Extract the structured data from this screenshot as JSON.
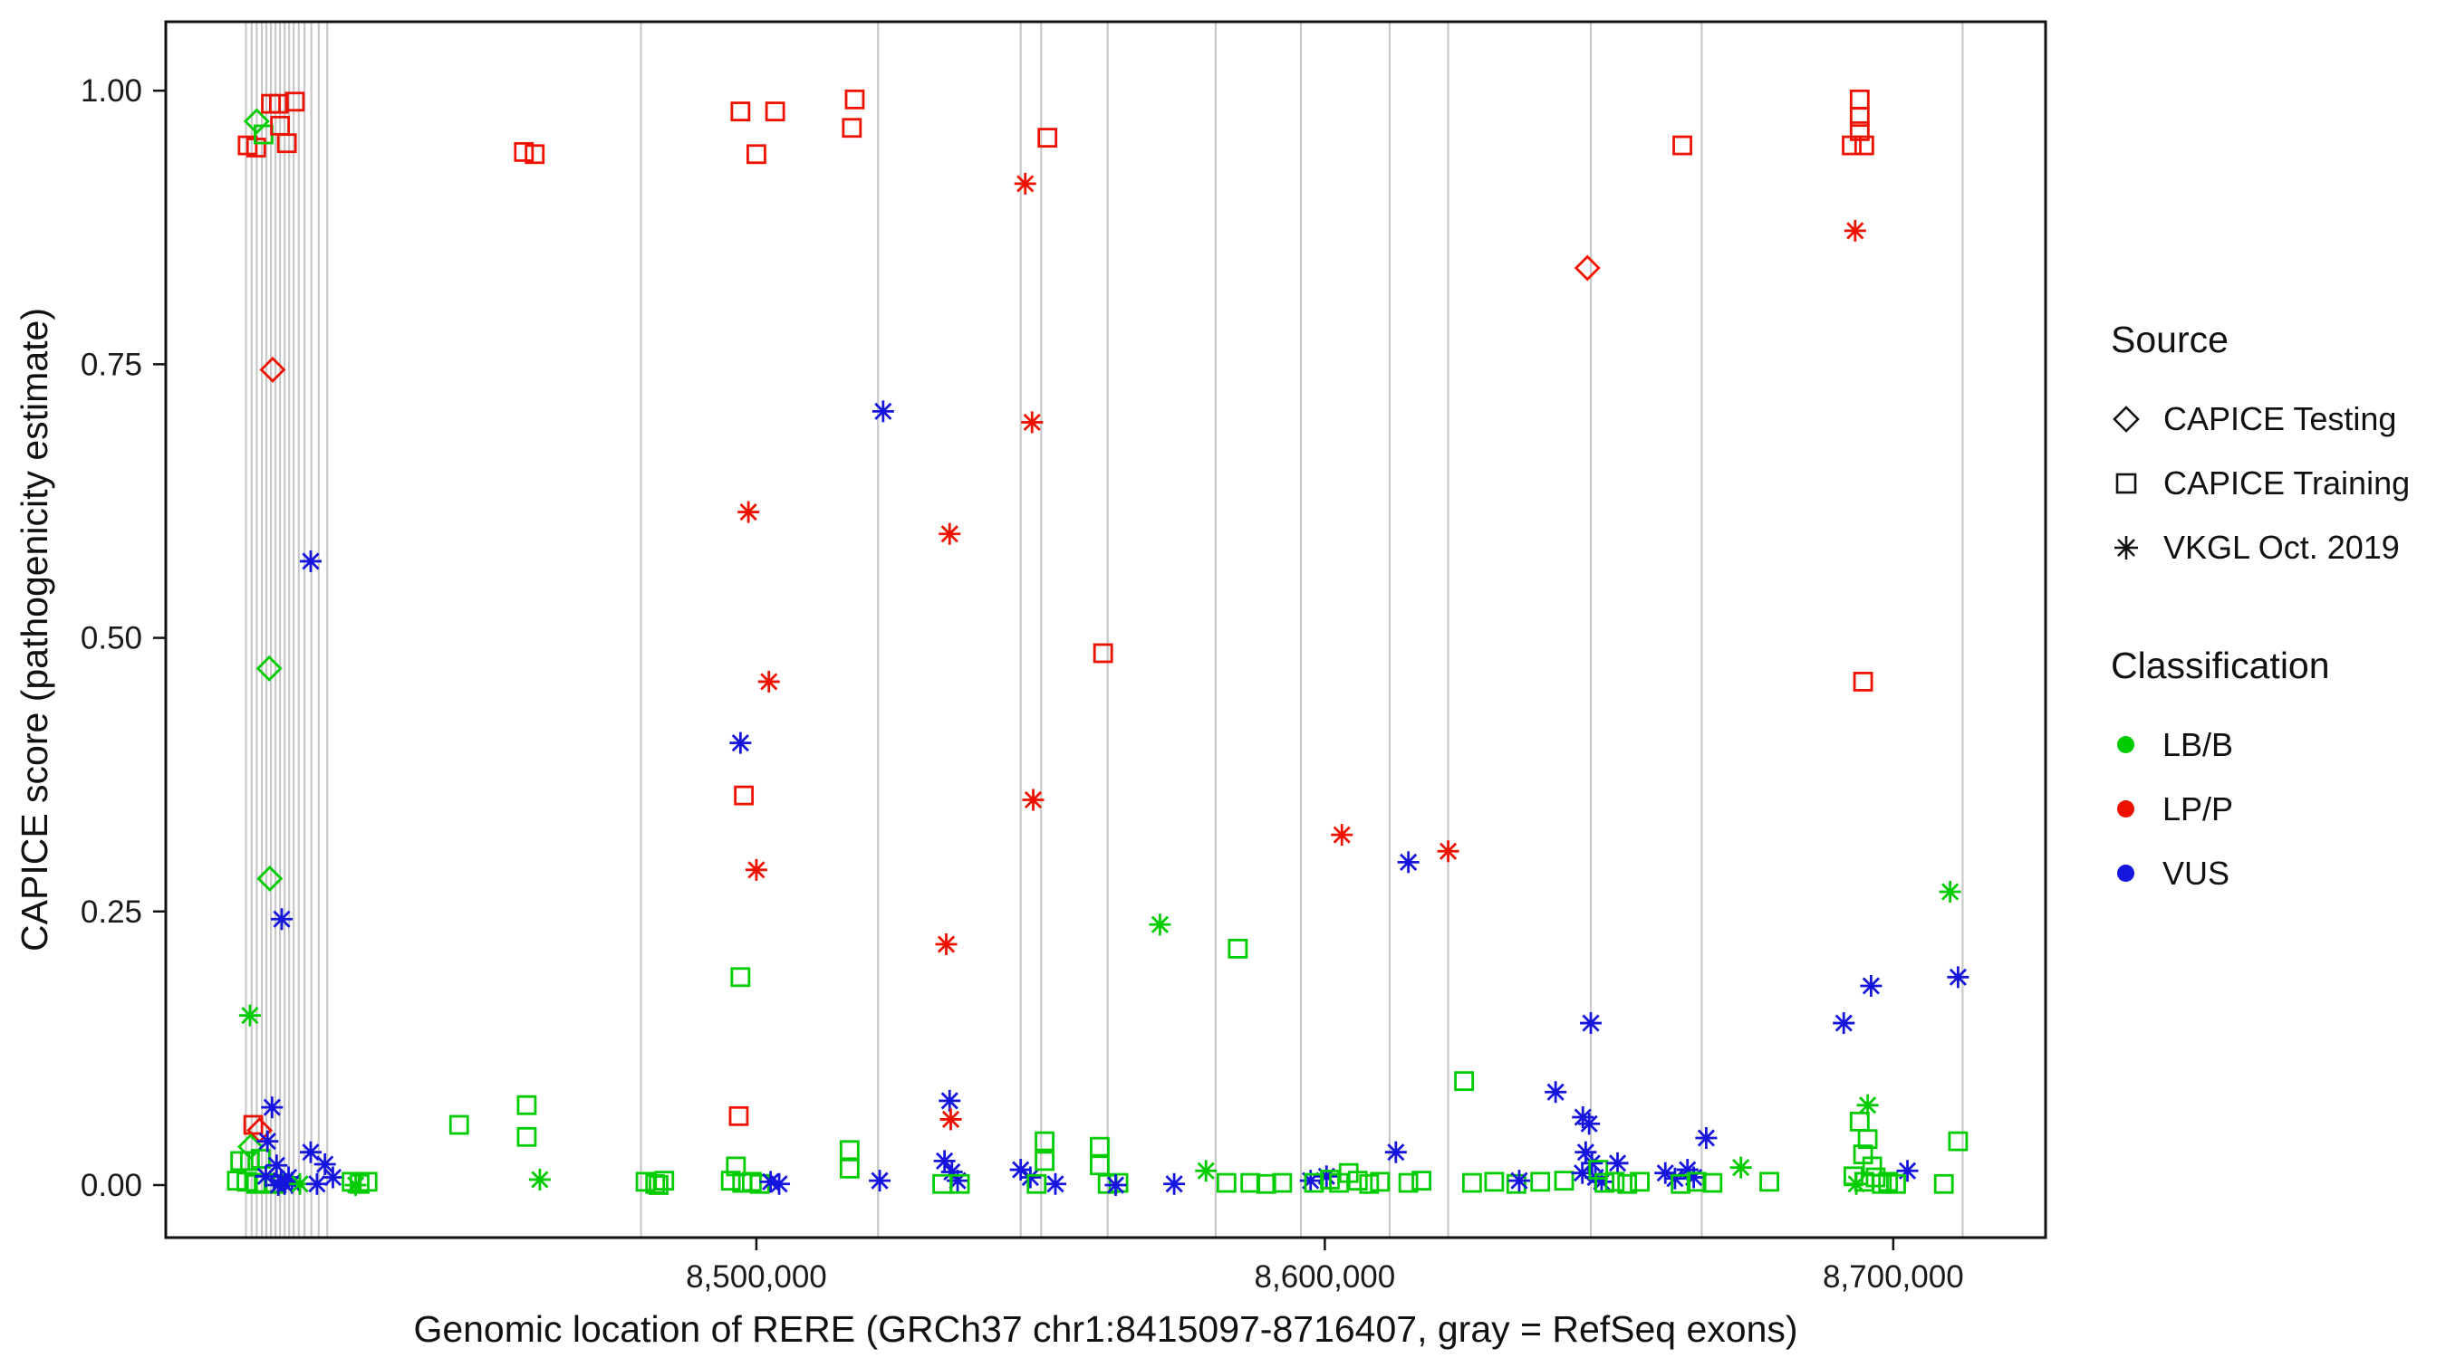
{
  "chart_data": {
    "type": "scatter",
    "title": "",
    "xlabel": "Genomic location of RERE (GRCh37 chr1:8415097-8716407, gray = RefSeq exons)",
    "ylabel": "CAPICE score (pathogenicity estimate)",
    "x_domain": [
      8396100,
      8726800
    ],
    "y_domain": [
      -0.048,
      1.063
    ],
    "x_ticks": [
      {
        "value": 8500000,
        "label": "8,500,000"
      },
      {
        "value": 8600000,
        "label": "8,600,000"
      },
      {
        "value": 8700000,
        "label": "8,700,000"
      }
    ],
    "y_ticks": [
      {
        "value": 0.0,
        "label": "0.00"
      },
      {
        "value": 0.25,
        "label": "0.25"
      },
      {
        "value": 0.5,
        "label": "0.50"
      },
      {
        "value": 0.75,
        "label": "0.75"
      },
      {
        "value": 1.0,
        "label": "1.00"
      }
    ],
    "grid": false,
    "legend_position": "right",
    "shape_codes": {
      "d": "CAPICE Testing",
      "s": "CAPICE Training",
      "a": "VKGL Oct. 2019"
    },
    "class_codes": {
      "B": "LB/B",
      "P": "LP/P",
      "V": "VUS"
    },
    "colors": {
      "B": "#00CC00",
      "P": "#EE1100",
      "V": "#1515DD",
      "exon": "#C8C8C8",
      "axis": "#111111"
    },
    "exons": [
      8410200,
      8411200,
      8412100,
      8413000,
      8413800,
      8414600,
      8415400,
      8416200,
      8417000,
      8417800,
      8418600,
      8419500,
      8420500,
      8421700,
      8423000,
      8424500,
      8479700,
      8521400,
      8546500,
      8550100,
      8561800,
      8580800,
      8595800,
      8611400,
      8621700,
      8646800,
      8666300,
      8712200
    ],
    "points": [
      [
        8410500,
        0.95,
        "s",
        "P"
      ],
      [
        8412000,
        0.948,
        "s",
        "P"
      ],
      [
        8412100,
        0.972,
        "d",
        "B"
      ],
      [
        8413300,
        0.96,
        "s",
        "B"
      ],
      [
        8414600,
        0.988,
        "s",
        "P"
      ],
      [
        8416000,
        0.988,
        "s",
        "P"
      ],
      [
        8416200,
        0.968,
        "s",
        "P"
      ],
      [
        8417400,
        0.952,
        "s",
        "P"
      ],
      [
        8418800,
        0.99,
        "s",
        "P"
      ],
      [
        8414900,
        0.745,
        "d",
        "P"
      ],
      [
        8414300,
        0.472,
        "d",
        "B"
      ],
      [
        8414400,
        0.28,
        "d",
        "B"
      ],
      [
        8416500,
        0.243,
        "a",
        "V"
      ],
      [
        8421600,
        0.57,
        "a",
        "V"
      ],
      [
        8410900,
        0.155,
        "a",
        "B"
      ],
      [
        8414800,
        0.071,
        "a",
        "V"
      ],
      [
        8411500,
        0.055,
        "s",
        "P"
      ],
      [
        8412600,
        0.05,
        "d",
        "P"
      ],
      [
        8411000,
        0.035,
        "d",
        "B"
      ],
      [
        8409200,
        0.022,
        "s",
        "B"
      ],
      [
        8410900,
        0.022,
        "s",
        "B"
      ],
      [
        8412800,
        0.024,
        "s",
        "B"
      ],
      [
        8408600,
        0.004,
        "s",
        "B"
      ],
      [
        8410300,
        0.003,
        "s",
        "B"
      ],
      [
        8412000,
        0.001,
        "s",
        "B"
      ],
      [
        8413600,
        0.002,
        "s",
        "B"
      ],
      [
        8415300,
        0.001,
        "s",
        "B"
      ],
      [
        8414000,
        0.04,
        "a",
        "V"
      ],
      [
        8415600,
        0.018,
        "a",
        "V"
      ],
      [
        8413700,
        0.008,
        "a",
        "V"
      ],
      [
        8416400,
        0.004,
        "a",
        "V"
      ],
      [
        8417700,
        0.007,
        "a",
        "V"
      ],
      [
        8415900,
        0.0,
        "a",
        "V"
      ],
      [
        8417000,
        0.001,
        "a",
        "V"
      ],
      [
        8418300,
        0.002,
        "a",
        "V"
      ],
      [
        8421600,
        0.03,
        "a",
        "V"
      ],
      [
        8419700,
        0.001,
        "a",
        "B"
      ],
      [
        8424100,
        0.019,
        "a",
        "V"
      ],
      [
        8425500,
        0.007,
        "a",
        "V"
      ],
      [
        8422700,
        0.001,
        "a",
        "V"
      ],
      [
        8428800,
        0.003,
        "s",
        "B"
      ],
      [
        8430200,
        0.001,
        "s",
        "B"
      ],
      [
        8431600,
        0.003,
        "s",
        "B"
      ],
      [
        8429500,
        0.0,
        "a",
        "B"
      ],
      [
        8447700,
        0.055,
        "s",
        "B"
      ],
      [
        8459100,
        0.944,
        "s",
        "P"
      ],
      [
        8461000,
        0.942,
        "s",
        "P"
      ],
      [
        8459600,
        0.073,
        "s",
        "B"
      ],
      [
        8459600,
        0.044,
        "s",
        "B"
      ],
      [
        8461900,
        0.005,
        "a",
        "B"
      ],
      [
        8480500,
        0.003,
        "s",
        "B"
      ],
      [
        8482200,
        0.001,
        "s",
        "B"
      ],
      [
        8483800,
        0.004,
        "s",
        "B"
      ],
      [
        8482800,
        0.0,
        "s",
        "B"
      ],
      [
        8497200,
        0.981,
        "s",
        "P"
      ],
      [
        8503300,
        0.981,
        "s",
        "P"
      ],
      [
        8500000,
        0.942,
        "s",
        "P"
      ],
      [
        8498600,
        0.615,
        "a",
        "P"
      ],
      [
        8502200,
        0.46,
        "a",
        "P"
      ],
      [
        8497200,
        0.404,
        "a",
        "V"
      ],
      [
        8497800,
        0.356,
        "s",
        "P"
      ],
      [
        8500000,
        0.288,
        "a",
        "P"
      ],
      [
        8497200,
        0.19,
        "s",
        "B"
      ],
      [
        8496900,
        0.063,
        "s",
        "P"
      ],
      [
        8496400,
        0.017,
        "s",
        "B"
      ],
      [
        8495500,
        0.004,
        "s",
        "B"
      ],
      [
        8497500,
        0.002,
        "s",
        "B"
      ],
      [
        8499200,
        0.003,
        "s",
        "B"
      ],
      [
        8500600,
        0.001,
        "s",
        "B"
      ],
      [
        8502500,
        0.003,
        "a",
        "V"
      ],
      [
        8504000,
        0.001,
        "a",
        "V"
      ],
      [
        8517300,
        0.992,
        "s",
        "P"
      ],
      [
        8516800,
        0.966,
        "s",
        "P"
      ],
      [
        8522300,
        0.707,
        "a",
        "V"
      ],
      [
        8516400,
        0.032,
        "s",
        "B"
      ],
      [
        8516400,
        0.015,
        "s",
        "B"
      ],
      [
        8521700,
        0.004,
        "a",
        "V"
      ],
      [
        8534000,
        0.595,
        "a",
        "P"
      ],
      [
        8533400,
        0.22,
        "a",
        "P"
      ],
      [
        8534000,
        0.077,
        "a",
        "V"
      ],
      [
        8534200,
        0.06,
        "a",
        "P"
      ],
      [
        8533100,
        0.022,
        "a",
        "V"
      ],
      [
        8534400,
        0.012,
        "a",
        "V"
      ],
      [
        8535400,
        0.004,
        "a",
        "V"
      ],
      [
        8532700,
        0.001,
        "s",
        "B"
      ],
      [
        8535800,
        0.001,
        "s",
        "B"
      ],
      [
        8547300,
        0.915,
        "a",
        "P"
      ],
      [
        8551200,
        0.957,
        "s",
        "P"
      ],
      [
        8548500,
        0.697,
        "a",
        "P"
      ],
      [
        8548700,
        0.352,
        "a",
        "P"
      ],
      [
        8546500,
        0.014,
        "a",
        "V"
      ],
      [
        8548200,
        0.007,
        "a",
        "V"
      ],
      [
        8552600,
        0.001,
        "a",
        "V"
      ],
      [
        8550700,
        0.04,
        "s",
        "B"
      ],
      [
        8550700,
        0.022,
        "s",
        "B"
      ],
      [
        8549300,
        0.001,
        "s",
        "B"
      ],
      [
        8561000,
        0.486,
        "s",
        "P"
      ],
      [
        8560400,
        0.035,
        "s",
        "B"
      ],
      [
        8560400,
        0.018,
        "s",
        "B"
      ],
      [
        8561800,
        0.001,
        "s",
        "B"
      ],
      [
        8563700,
        0.002,
        "s",
        "B"
      ],
      [
        8563200,
        0.0,
        "a",
        "V"
      ],
      [
        8571000,
        0.238,
        "a",
        "B"
      ],
      [
        8573500,
        0.001,
        "a",
        "V"
      ],
      [
        8579100,
        0.013,
        "a",
        "B"
      ],
      [
        8584700,
        0.216,
        "s",
        "B"
      ],
      [
        8582700,
        0.002,
        "s",
        "B"
      ],
      [
        8586900,
        0.002,
        "s",
        "B"
      ],
      [
        8589700,
        0.001,
        "s",
        "B"
      ],
      [
        8592500,
        0.002,
        "s",
        "B"
      ],
      [
        8597500,
        0.004,
        "a",
        "V"
      ],
      [
        8600300,
        0.008,
        "a",
        "V"
      ],
      [
        8598100,
        0.002,
        "s",
        "B"
      ],
      [
        8600900,
        0.005,
        "s",
        "B"
      ],
      [
        8602500,
        0.002,
        "s",
        "B"
      ],
      [
        8604200,
        0.011,
        "s",
        "B"
      ],
      [
        8605800,
        0.004,
        "s",
        "B"
      ],
      [
        8607800,
        0.001,
        "s",
        "B"
      ],
      [
        8609700,
        0.003,
        "s",
        "B"
      ],
      [
        8603000,
        0.32,
        "a",
        "P"
      ],
      [
        8612500,
        0.03,
        "a",
        "V"
      ],
      [
        8614700,
        0.295,
        "a",
        "V"
      ],
      [
        8614700,
        0.002,
        "s",
        "B"
      ],
      [
        8617000,
        0.004,
        "s",
        "B"
      ],
      [
        8621700,
        0.305,
        "a",
        "P"
      ],
      [
        8624500,
        0.095,
        "s",
        "B"
      ],
      [
        8625900,
        0.002,
        "s",
        "B"
      ],
      [
        8629800,
        0.003,
        "s",
        "B"
      ],
      [
        8633700,
        0.001,
        "s",
        "B"
      ],
      [
        8637900,
        0.003,
        "s",
        "B"
      ],
      [
        8642100,
        0.004,
        "s",
        "B"
      ],
      [
        8634200,
        0.004,
        "a",
        "V"
      ],
      [
        8640600,
        0.085,
        "a",
        "V"
      ],
      [
        8645400,
        0.062,
        "a",
        "V"
      ],
      [
        8646500,
        0.056,
        "a",
        "V"
      ],
      [
        8646200,
        0.838,
        "d",
        "P"
      ],
      [
        8646800,
        0.148,
        "a",
        "V"
      ],
      [
        8645900,
        0.03,
        "a",
        "V"
      ],
      [
        8647000,
        0.02,
        "a",
        "V"
      ],
      [
        8645300,
        0.011,
        "a",
        "V"
      ],
      [
        8647600,
        0.007,
        "a",
        "V"
      ],
      [
        8648700,
        0.003,
        "a",
        "V"
      ],
      [
        8648100,
        0.014,
        "s",
        "B"
      ],
      [
        8649200,
        0.002,
        "s",
        "B"
      ],
      [
        8651500,
        0.02,
        "a",
        "V"
      ],
      [
        8651000,
        0.003,
        "s",
        "B"
      ],
      [
        8653200,
        0.001,
        "s",
        "B"
      ],
      [
        8655400,
        0.003,
        "s",
        "B"
      ],
      [
        8662900,
        0.95,
        "s",
        "P"
      ],
      [
        8659900,
        0.011,
        "a",
        "V"
      ],
      [
        8661600,
        0.006,
        "a",
        "V"
      ],
      [
        8663800,
        0.014,
        "a",
        "V"
      ],
      [
        8664900,
        0.007,
        "a",
        "V"
      ],
      [
        8667100,
        0.043,
        "a",
        "V"
      ],
      [
        8662600,
        0.001,
        "s",
        "B"
      ],
      [
        8665400,
        0.003,
        "s",
        "B"
      ],
      [
        8668200,
        0.002,
        "s",
        "B"
      ],
      [
        8673200,
        0.016,
        "a",
        "B"
      ],
      [
        8678200,
        0.003,
        "s",
        "B"
      ],
      [
        8694100,
        0.992,
        "s",
        "P"
      ],
      [
        8694100,
        0.976,
        "s",
        "P"
      ],
      [
        8694100,
        0.963,
        "s",
        "P"
      ],
      [
        8694900,
        0.95,
        "s",
        "P"
      ],
      [
        8692700,
        0.95,
        "s",
        "P"
      ],
      [
        8693300,
        0.872,
        "a",
        "P"
      ],
      [
        8694700,
        0.46,
        "s",
        "P"
      ],
      [
        8691300,
        0.148,
        "a",
        "V"
      ],
      [
        8696100,
        0.182,
        "a",
        "V"
      ],
      [
        8695500,
        0.073,
        "a",
        "B"
      ],
      [
        8694100,
        0.058,
        "s",
        "B"
      ],
      [
        8695500,
        0.042,
        "s",
        "B"
      ],
      [
        8694700,
        0.028,
        "s",
        "B"
      ],
      [
        8696300,
        0.017,
        "s",
        "B"
      ],
      [
        8693000,
        0.008,
        "s",
        "B"
      ],
      [
        8694900,
        0.003,
        "s",
        "B"
      ],
      [
        8696900,
        0.007,
        "s",
        "B"
      ],
      [
        8698000,
        0.001,
        "s",
        "B"
      ],
      [
        8699100,
        0.003,
        "s",
        "B"
      ],
      [
        8693500,
        0.001,
        "a",
        "B"
      ],
      [
        8702500,
        0.013,
        "a",
        "V"
      ],
      [
        8700500,
        0.001,
        "s",
        "B"
      ],
      [
        8710000,
        0.268,
        "a",
        "B"
      ],
      [
        8711400,
        0.19,
        "a",
        "V"
      ],
      [
        8711400,
        0.04,
        "s",
        "B"
      ],
      [
        8708900,
        0.001,
        "s",
        "B"
      ]
    ]
  },
  "legends": {
    "source": {
      "title": "Source",
      "items": [
        {
          "label": "CAPICE Testing",
          "shape": "diamond"
        },
        {
          "label": "CAPICE Training",
          "shape": "square"
        },
        {
          "label": "VKGL Oct. 2019",
          "shape": "asterisk"
        }
      ]
    },
    "classification": {
      "title": "Classification",
      "items": [
        {
          "label": "LB/B",
          "color": "#00CC00"
        },
        {
          "label": "LP/P",
          "color": "#EE1100"
        },
        {
          "label": "VUS",
          "color": "#1515DD"
        }
      ]
    }
  }
}
